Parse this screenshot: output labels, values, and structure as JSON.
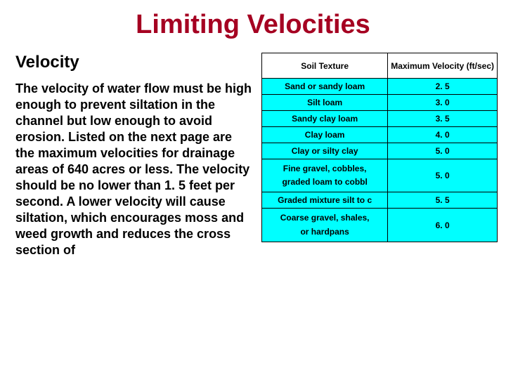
{
  "colors": {
    "title": "#a50021",
    "cell_bg": "#00ffff",
    "border": "#000000",
    "text": "#000000",
    "page_bg": "#ffffff"
  },
  "title": "Limiting Velocities",
  "subtitle": "Velocity",
  "body": "The velocity of water flow must be high enough to prevent siltation in the channel but low enough to avoid erosion. Listed on the next page are the maximum velocities for drainage areas of 640 acres or less. The velocity should be no lower than 1. 5 feet per second. A lower velocity will cause siltation, which encourages moss and weed growth and reduces the cross section of",
  "table": {
    "headers": [
      "Soil Texture",
      "Maximum Velocity (ft/sec)"
    ],
    "rows": [
      {
        "soil": "Sand or sandy loam",
        "value": "2. 5"
      },
      {
        "soil": "Silt loam",
        "value": "3. 0"
      },
      {
        "soil": "Sandy clay loam",
        "value": "3. 5"
      },
      {
        "soil": "Clay loam",
        "value": "4. 0"
      },
      {
        "soil": "Clay or silty clay",
        "value": "5. 0"
      },
      {
        "soil": "Fine gravel, cobbles, graded loam to cobbl",
        "value": "5. 0"
      },
      {
        "soil": "Graded mixture silt to c",
        "value": "5. 5"
      },
      {
        "soil": "Coarse gravel, shales, or hardpans",
        "value": "6. 0"
      }
    ]
  }
}
